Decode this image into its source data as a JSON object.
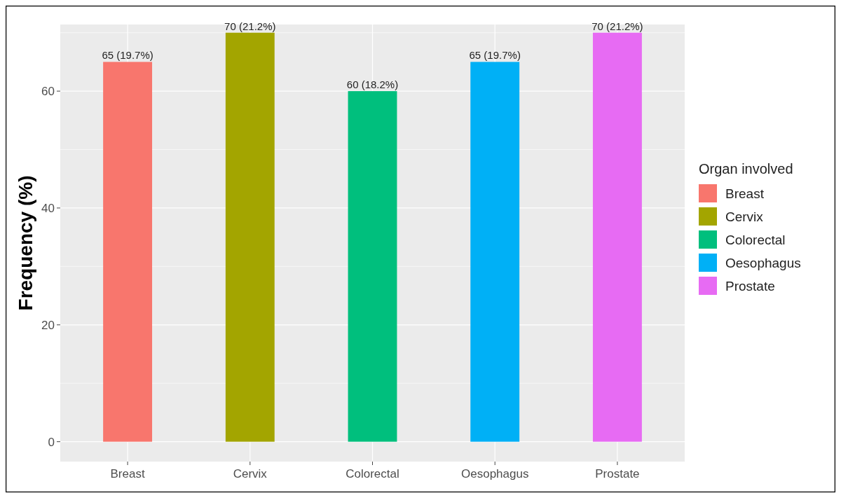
{
  "chart_data": {
    "type": "bar",
    "ylabel": "Frequency (%)",
    "legend_title": "Organ involved",
    "categories": [
      "Breast",
      "Cervix",
      "Colorectal",
      "Oesophagus",
      "Prostate"
    ],
    "series": [
      {
        "name": "Breast",
        "color": "#f8766d",
        "values": [
          65,
          null,
          null,
          null,
          null
        ],
        "value_labels": [
          "65 (19.7%)",
          null,
          null,
          null,
          null
        ]
      },
      {
        "name": "Cervix",
        "color": "#a3a500",
        "values": [
          null,
          70,
          null,
          null,
          null
        ],
        "value_labels": [
          null,
          "70 (21.2%)",
          null,
          null,
          null
        ]
      },
      {
        "name": "Colorectal",
        "color": "#00bf7d",
        "values": [
          null,
          null,
          60,
          null,
          null
        ],
        "value_labels": [
          null,
          null,
          "60 (18.2%)",
          null,
          null
        ]
      },
      {
        "name": "Oesophagus",
        "color": "#00b0f6",
        "values": [
          null,
          null,
          null,
          65,
          null
        ],
        "value_labels": [
          null,
          null,
          null,
          "65 (19.7%)",
          null
        ]
      },
      {
        "name": "Prostate",
        "color": "#e76bf3",
        "values": [
          null,
          null,
          null,
          null,
          70
        ],
        "value_labels": [
          null,
          null,
          null,
          null,
          "70 (21.2%)"
        ]
      }
    ],
    "ylim": [
      -3.4,
      71.4
    ],
    "yticks": [
      0,
      20,
      40,
      60
    ],
    "grid": true,
    "legend": "right"
  }
}
